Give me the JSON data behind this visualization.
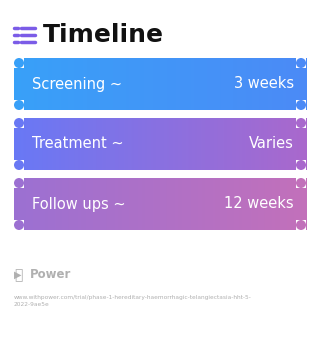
{
  "title": "Timeline",
  "title_icon_color": "#7B5CE7",
  "background_color": "#ffffff",
  "rows": [
    {
      "label": "Screening ~",
      "value": "3 weeks",
      "color_left": "#3B9EF5",
      "color_right": "#4B8FF5"
    },
    {
      "label": "Treatment ~",
      "value": "Varies",
      "color_left": "#6B7FF5",
      "color_right": "#A96BCC"
    },
    {
      "label": "Follow ups ~",
      "value": "12 weeks",
      "color_left": "#9B70D4",
      "color_right": "#C070BB"
    }
  ],
  "watermark_text": "Power",
  "watermark_color": "#b0b0b0",
  "url_text": "www.withpower.com/trial/phase-1-hereditary-haemorrhagic-telangiectasia-hht-5-\n2022-9ae5e",
  "url_color": "#b0b0b0",
  "row_text_color": "#ffffff",
  "row_fontsize": 10.5,
  "title_fontsize": 18
}
